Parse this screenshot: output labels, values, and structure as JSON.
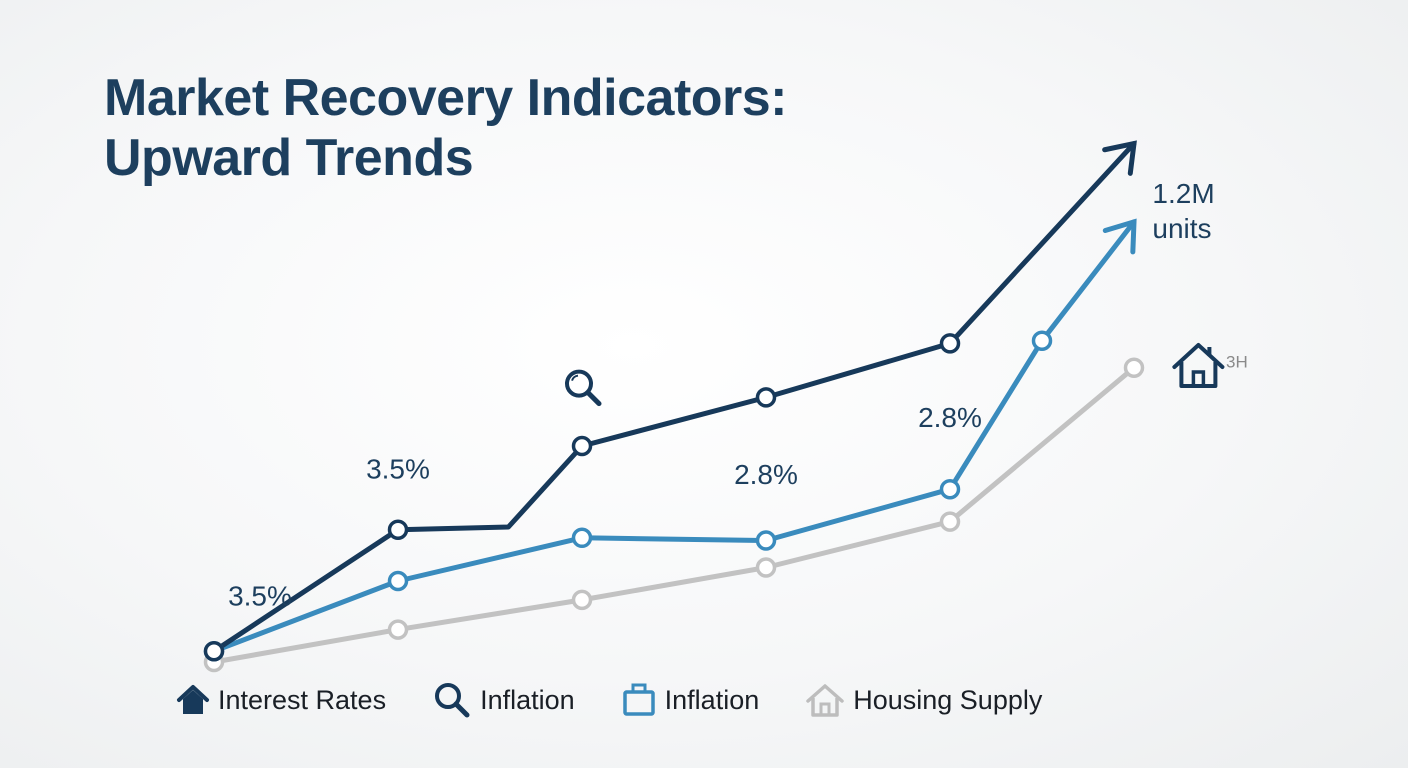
{
  "title": {
    "line1": "Market Recovery Indicators:",
    "line2": "Upward Trends"
  },
  "colors": {
    "dark": "#17395a",
    "blue": "#3a8bbd",
    "gray": "#c2c2c2",
    "text": "#1a1f26"
  },
  "chart_data": {
    "type": "line",
    "title": "Market Recovery Indicators: Upward Trends",
    "xlabel": "",
    "ylabel": "",
    "x": [
      0,
      1,
      2,
      3,
      4,
      5,
      6
    ],
    "ylim": [
      0,
      100
    ],
    "grid": false,
    "legend_position": "bottom",
    "series": [
      {
        "name": "Interest Rates",
        "color": "#17395a",
        "points": [
          [
            0,
            4
          ],
          [
            1,
            49
          ],
          [
            1.6,
            50
          ],
          [
            2,
            80
          ],
          [
            3,
            98
          ],
          [
            4,
            118
          ]
        ],
        "markers": [
          0,
          1,
          3,
          4,
          5
        ],
        "arrow_end": [
          5,
          192
        ]
      },
      {
        "name": "Inflation",
        "color": "#3a8bbd",
        "points": [
          [
            0,
            4
          ],
          [
            1,
            30
          ],
          [
            2,
            46
          ],
          [
            3,
            45
          ],
          [
            4,
            64
          ],
          [
            4.5,
            119
          ]
        ],
        "markers": [
          0,
          1,
          2,
          3,
          4,
          5
        ],
        "arrow_end": [
          5,
          163
        ]
      },
      {
        "name": "Housing Supply",
        "color": "#c2c2c2",
        "points": [
          [
            0,
            0
          ],
          [
            1,
            12
          ],
          [
            2,
            23
          ],
          [
            3,
            35
          ],
          [
            4,
            52
          ],
          [
            5,
            109
          ]
        ],
        "markers": [
          0,
          1,
          2,
          3,
          4,
          5
        ],
        "arrow_end": null
      }
    ],
    "annotations": [
      {
        "text": "3.5%",
        "x": 0.25,
        "y": 21
      },
      {
        "text": "3.5%",
        "x": 1,
        "y": 68
      },
      {
        "text": "2.8%",
        "x": 3,
        "y": 66
      },
      {
        "text": "2.8%",
        "x": 4,
        "y": 87
      },
      {
        "text": "1.2M",
        "x": 5.1,
        "y": 170
      },
      {
        "text": "units",
        "x": 5.1,
        "y": 157
      },
      {
        "text": "3H",
        "x": 5.5,
        "y": 109
      }
    ],
    "icons": [
      {
        "name": "magnifier-icon",
        "x": 2,
        "y": 102
      },
      {
        "name": "house-icon",
        "x": 5.35,
        "y": 110
      }
    ]
  },
  "legend": [
    {
      "label": "Interest Rates",
      "icon": "house-filled-icon",
      "color": "#17395a"
    },
    {
      "label": "Inflation",
      "icon": "magnifier-icon",
      "color": "#17395a"
    },
    {
      "label": "Inflation",
      "icon": "briefcase-icon",
      "color": "#3a8bbd"
    },
    {
      "label": "Housing Supply",
      "icon": "house-outline-icon",
      "color": "#bdbdbd"
    }
  ]
}
